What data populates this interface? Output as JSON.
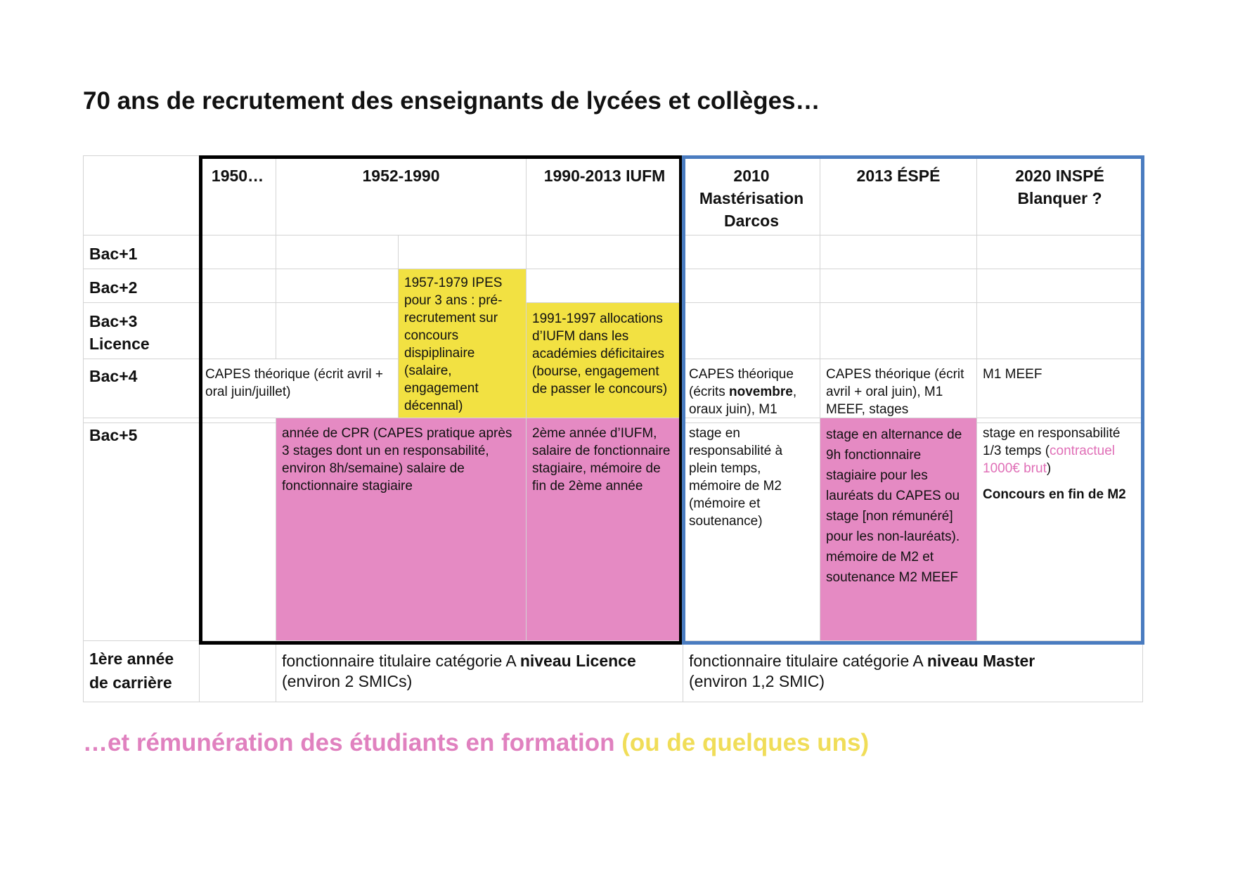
{
  "title": "70 ans de recrutement des enseignants de lycées et collèges…",
  "subtitle": {
    "pink": "…et rémunération des étudiants en formation",
    "yellow": "(ou de quelques uns)"
  },
  "colors": {
    "yellow": "#f2e142",
    "pink": "#e58ac3",
    "blue_frame": "#4a7cc0",
    "black_frame": "#000000"
  },
  "headers": {
    "c1": "1950…",
    "c2": "1952-1990",
    "c3": "1990-2013 IUFM",
    "c4": "2010 Mastérisation Darcos",
    "c5": "2013 ÉSPÉ",
    "c6": "2020 INSPÉ Blanquer ?"
  },
  "rows": {
    "bac1": "Bac+1",
    "bac2": "Bac+2",
    "bac3": "Bac+3 Licence",
    "bac4": "Bac+4",
    "bac5": "Bac+5",
    "career": "1ère année de carrière"
  },
  "cells": {
    "ipes": "1957-1979 IPES pour 3 ans : pré-recrutement sur concours dispiplinaire (salaire, engagement décennal)",
    "iufm_alloc": "1991-1997 allocations d’IUFM dans les académies déficitaires (bourse, engagement de passer le concours)",
    "capes_1950": "CAPES théorique (écrit avril + oral juin/juillet)",
    "capes_2010_a": "CAPES théorique (écrits ",
    "capes_2010_b": "novembre",
    "capes_2010_c": ", oraux juin), M1",
    "capes_2013": "CAPES théorique (écrit avril + oral juin), M1 MEEF, stages",
    "m1_2020": "M1 MEEF",
    "cpr": "année de CPR (CAPES pratique après 3 stages dont un en responsabilité, environ 8h/semaine) salaire de fonctionnaire stagiaire",
    "iufm_2": "2ème année d’IUFM, salaire de fonctionnaire stagiaire, mémoire de fin de 2ème année",
    "stage_2010": "stage en responsabilité à plein temps, mémoire de M2 (mémoire et soutenance)",
    "stage_2013": "stage en alternance de 9h fonctionnaire stagiaire pour les lauréats  du CAPES ou stage [non rémunéré] pour les non-lauréats). mémoire de M2 et soutenance M2 MEEF",
    "stage_2020_a": "stage en responsabilité 1/3 temps (",
    "stage_2020_pink": "contractuel 1000€ brut",
    "stage_2020_b": ")",
    "stage_2020_bold": "Concours en fin de M2"
  },
  "career": {
    "licence_a": "fonctionnaire titulaire catégorie A ",
    "licence_b": "niveau Licence",
    "licence_c": "(environ 2 SMICs)",
    "master_a": "fonctionnaire titulaire catégorie A ",
    "master_b": "niveau Master",
    "master_c": "(environ 1,2 SMIC)"
  }
}
